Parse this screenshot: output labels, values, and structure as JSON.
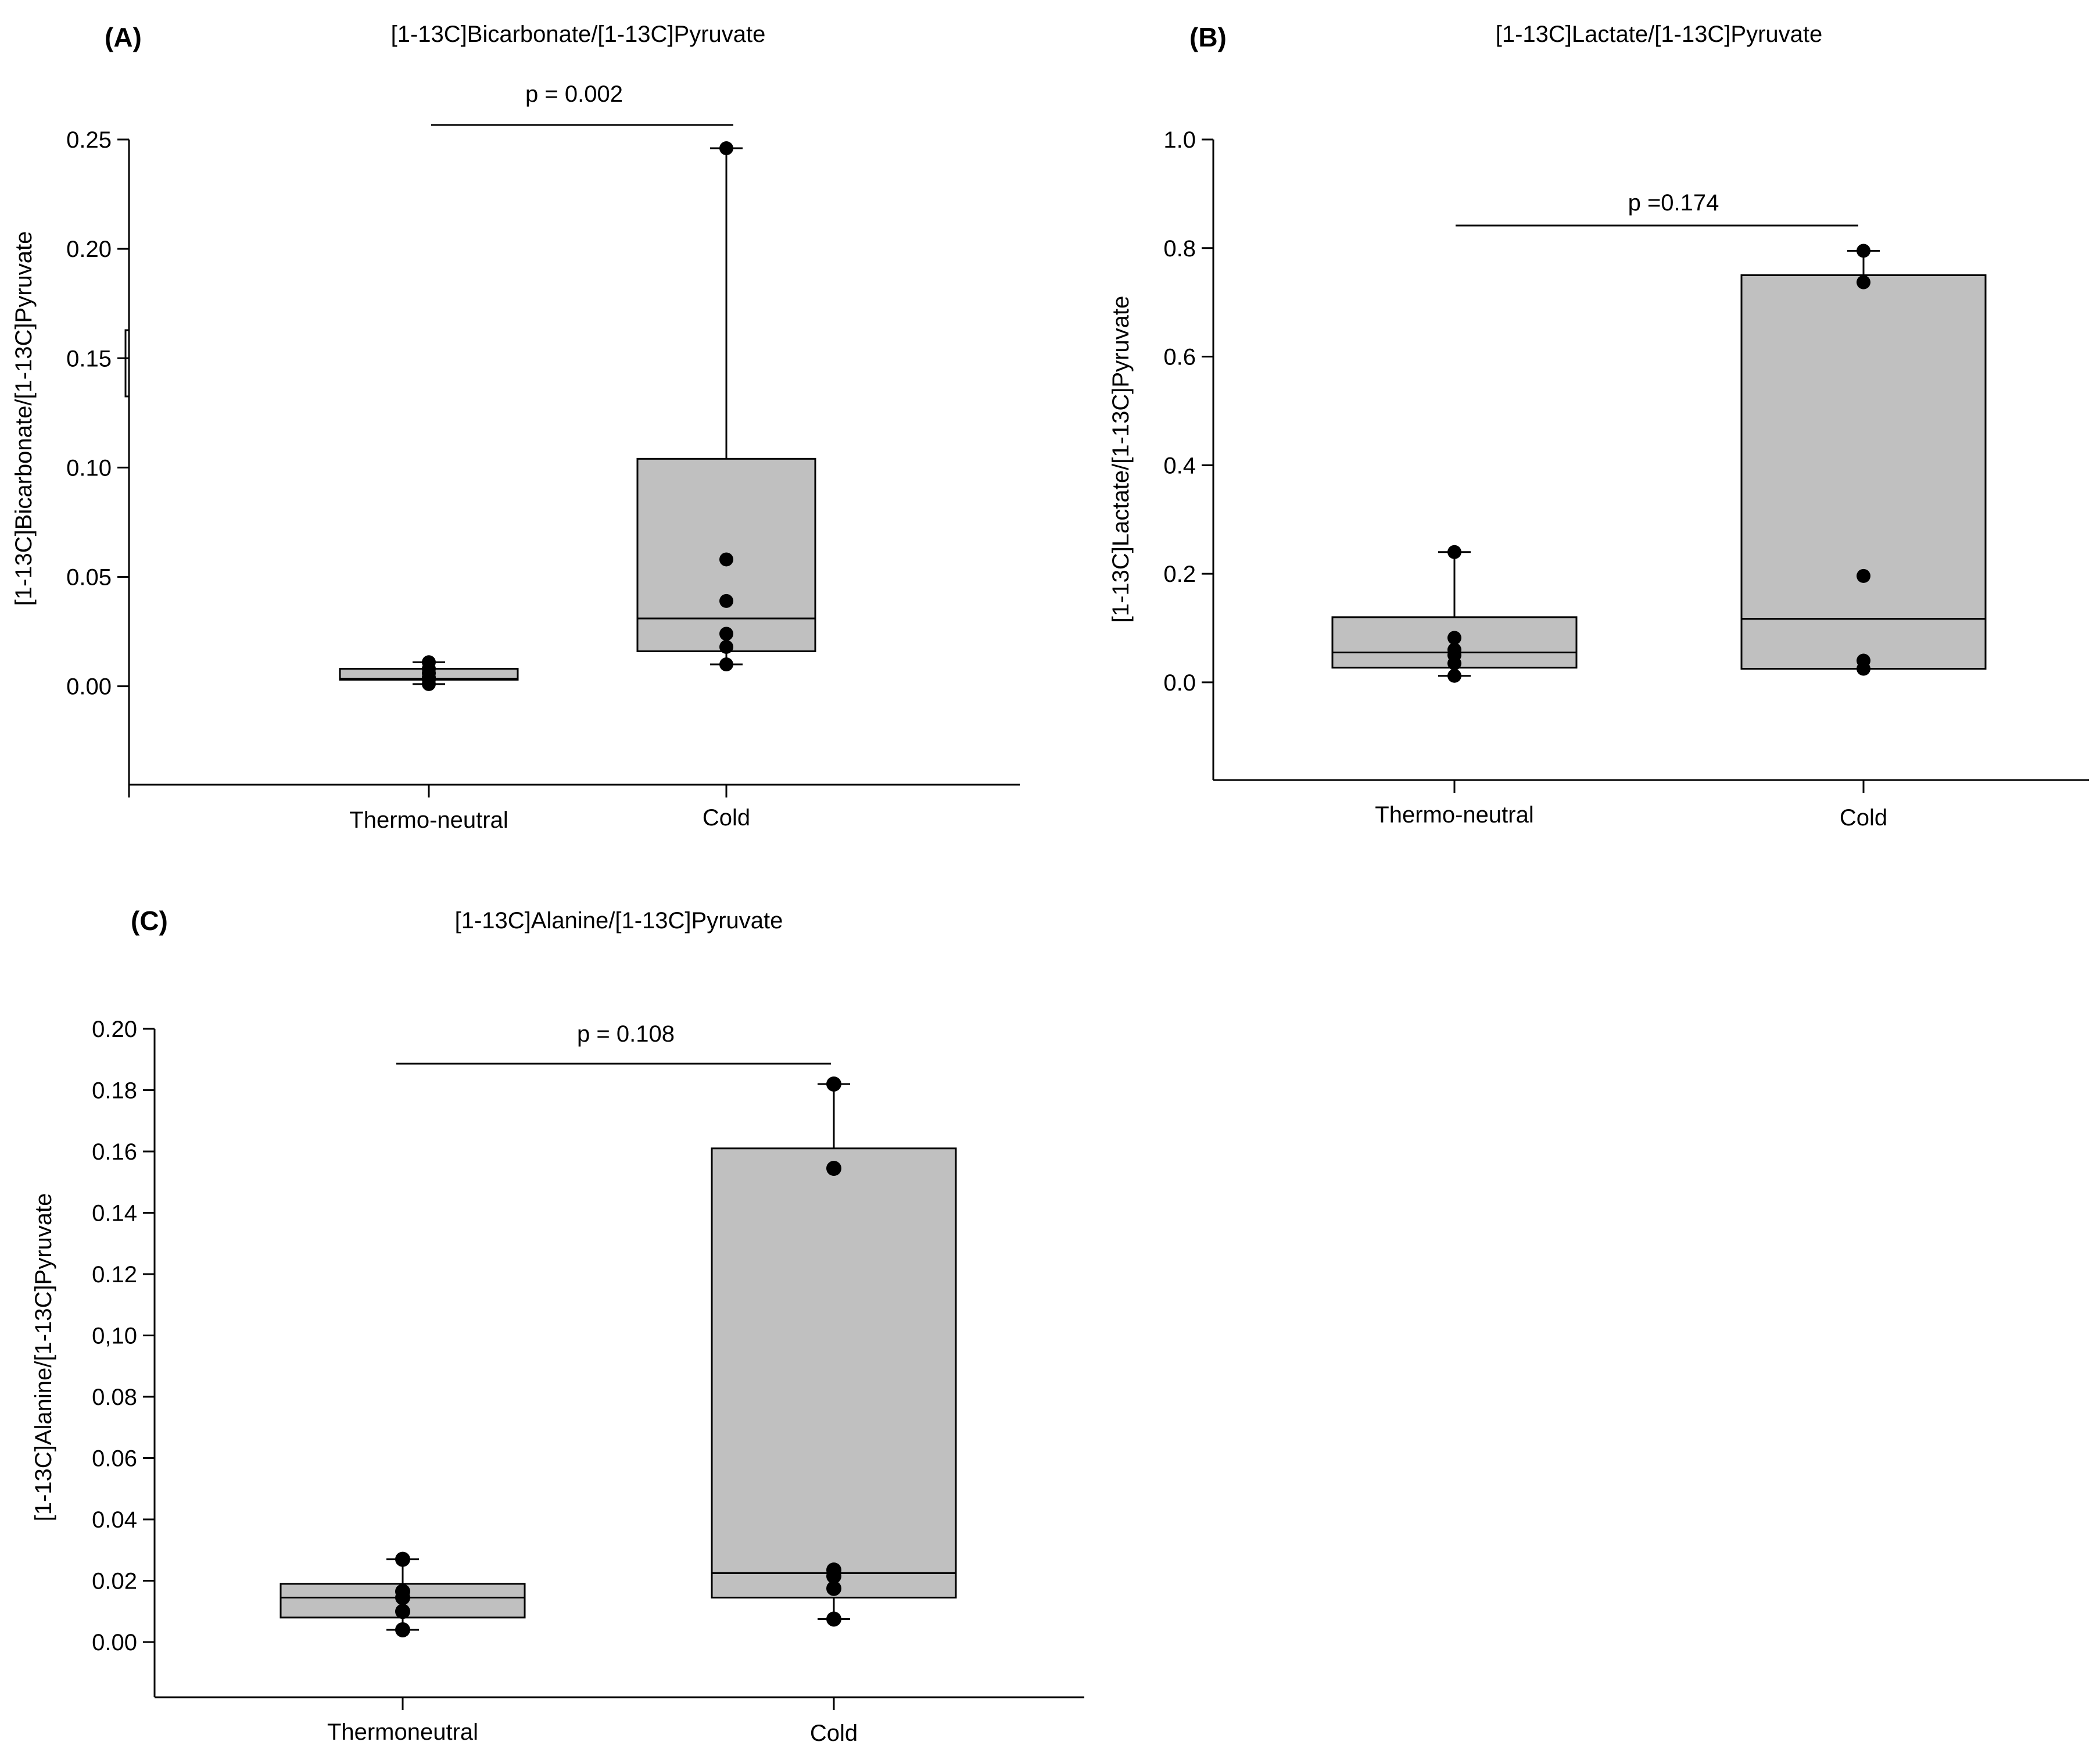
{
  "chart_data": [
    {
      "type": "box",
      "panel_label": "(A)",
      "title": "[1-13C]Bicarbonate/[1-13C]Pyruvate",
      "ylabel": "[1-13C]Bicarbonate/[1-13C]Pyruvate",
      "ylim": [
        -0.045,
        0.25
      ],
      "yticks": [
        "0.00",
        "0.05",
        "0.10",
        "0.15",
        "0.20",
        "0.25"
      ],
      "categories": [
        "Thermo-neutral",
        "Cold"
      ],
      "p_value": "p = 0.002",
      "boxes": [
        {
          "q1": 0.003,
          "median": 0.0035,
          "q3": 0.008,
          "whisker_low": 0.001,
          "whisker_high": 0.011,
          "points": [
            0.001,
            0.003,
            0.004,
            0.006,
            0.008,
            0.011
          ]
        },
        {
          "q1": 0.016,
          "median": 0.031,
          "q3": 0.104,
          "whisker_low": 0.01,
          "whisker_high": 0.246,
          "points": [
            0.01,
            0.018,
            0.024,
            0.039,
            0.058,
            0.246
          ]
        }
      ]
    },
    {
      "type": "box",
      "panel_label": "(B)",
      "title": "[1-13C]Lactate/[1-13C]Pyruvate",
      "ylabel": "[1-13C]Lactate/[1-13C]Pyruvate",
      "ylim": [
        -0.18,
        1.0
      ],
      "yticks": [
        "0.0",
        "0.2",
        "0.4",
        "0.6",
        "0.8",
        "1.0"
      ],
      "categories": [
        "Thermo-neutral",
        "Cold"
      ],
      "p_value": "p =0.174",
      "boxes": [
        {
          "q1": 0.027,
          "median": 0.055,
          "q3": 0.12,
          "whisker_low": 0.012,
          "whisker_high": 0.24,
          "points": [
            0.012,
            0.035,
            0.05,
            0.06,
            0.082,
            0.24
          ]
        },
        {
          "q1": 0.025,
          "median": 0.117,
          "q3": 0.75,
          "whisker_low": 0.025,
          "whisker_high": 0.795,
          "points": [
            0.025,
            0.04,
            0.196,
            0.737,
            0.795
          ]
        }
      ]
    },
    {
      "type": "box",
      "panel_label": "(C)",
      "title": "[1-13C]Alanine/[1-13C]Pyruvate",
      "ylabel": "[1-13C]Alanine/[1-13C]Pyruvate",
      "ylim": [
        -0.018,
        0.2
      ],
      "yticks": [
        "0.00",
        "0.02",
        "0.04",
        "0.06",
        "0.08",
        "0,10",
        "0.12",
        "0.14",
        "0.16",
        "0.18",
        "0.20"
      ],
      "categories": [
        "Thermoneutral",
        "Cold"
      ],
      "p_value": "p = 0.108",
      "boxes": [
        {
          "q1": 0.008,
          "median": 0.0145,
          "q3": 0.019,
          "whisker_low": 0.004,
          "whisker_high": 0.027,
          "points": [
            0.004,
            0.01,
            0.0145,
            0.0165,
            0.027
          ]
        },
        {
          "q1": 0.0145,
          "median": 0.0225,
          "q3": 0.161,
          "whisker_low": 0.0075,
          "whisker_high": 0.182,
          "points": [
            0.0075,
            0.0175,
            0.0215,
            0.0235,
            0.1545,
            0.182
          ]
        }
      ]
    }
  ]
}
